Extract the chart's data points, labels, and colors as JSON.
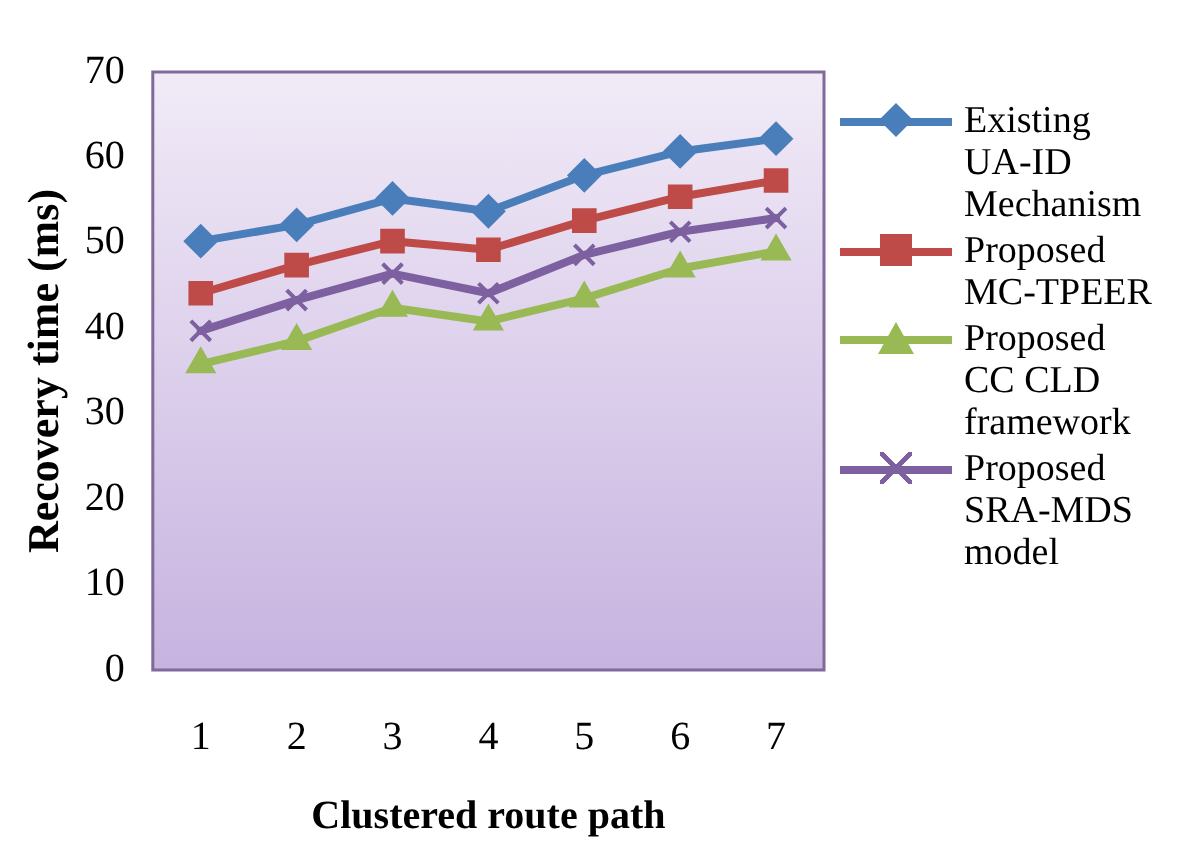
{
  "chart_data": {
    "type": "line",
    "xlabel": "Clustered route path",
    "ylabel": "Recovery time (ms)",
    "categories": [
      "1",
      "2",
      "3",
      "4",
      "5",
      "6",
      "7"
    ],
    "ylim": [
      0,
      70
    ],
    "yticks": [
      0,
      10,
      20,
      30,
      40,
      50,
      60,
      70
    ],
    "legend": "right",
    "series": [
      {
        "name": "Existing UA-ID Mechanism",
        "color": "#4a7ebb",
        "marker": "diamond",
        "values": [
          50.2,
          52.1,
          55.2,
          53.7,
          57.9,
          60.7,
          62.2
        ]
      },
      {
        "name": "Proposed MC-TPEER",
        "color": "#be4b48",
        "marker": "square",
        "values": [
          44.1,
          47.4,
          50.2,
          49.2,
          52.6,
          55.4,
          57.3
        ]
      },
      {
        "name": "Proposed CC CLD framework",
        "color": "#98b954",
        "marker": "triangle",
        "values": [
          35.8,
          38.5,
          42.4,
          40.8,
          43.5,
          47.0,
          49.0
        ]
      },
      {
        "name": "Proposed SRA-MDS model",
        "color": "#7d60a0",
        "marker": "cross",
        "values": [
          39.7,
          43.3,
          46.4,
          44.1,
          48.6,
          51.3,
          52.9
        ]
      }
    ]
  }
}
